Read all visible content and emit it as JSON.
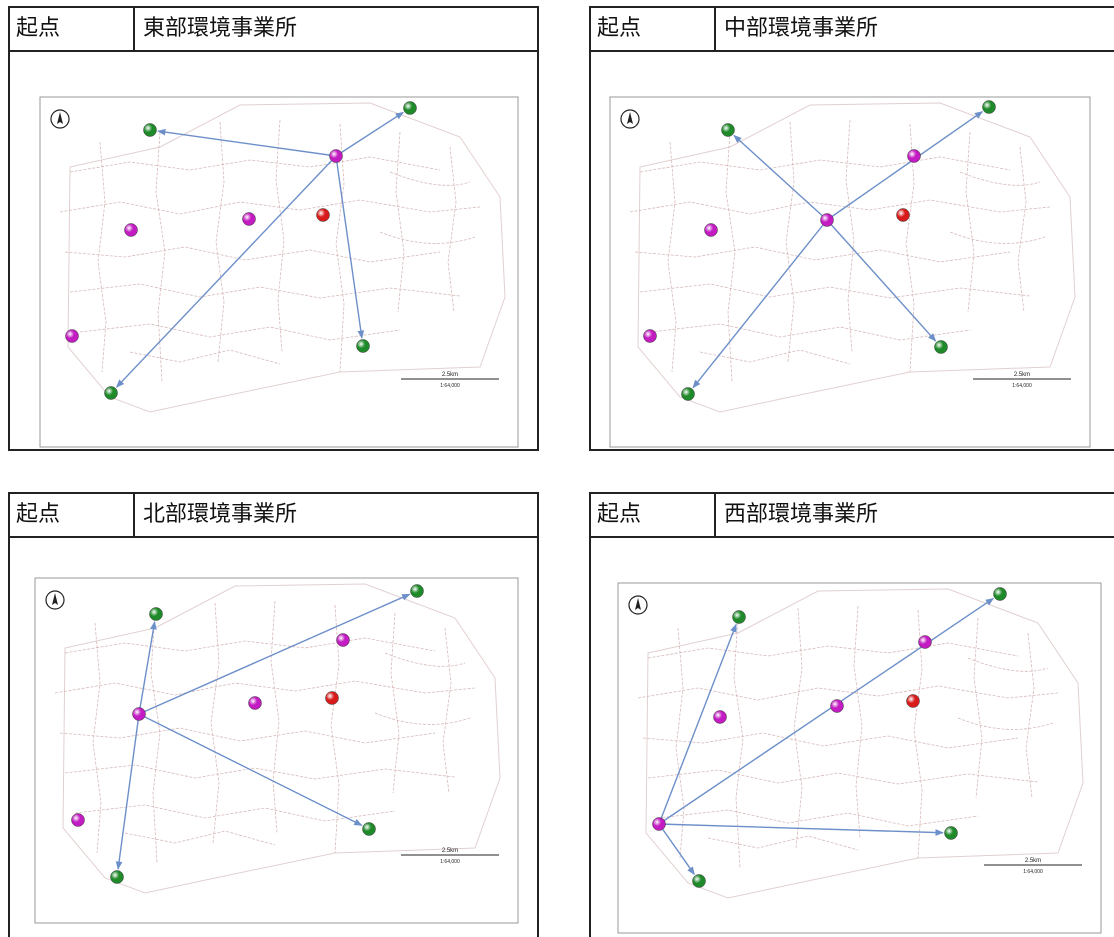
{
  "panels": [
    {
      "label": "起点",
      "title": "東部環境事業所",
      "scale_text": "2.5km",
      "scale_sub": "1:64,000",
      "points": [
        {
          "id": "o",
          "kind": "magenta"
        },
        {
          "id": "g1",
          "kind": "green"
        },
        {
          "id": "g2",
          "kind": "green"
        },
        {
          "id": "g3",
          "kind": "green"
        },
        {
          "id": "g4",
          "kind": "green"
        },
        {
          "id": "m1",
          "kind": "magenta"
        },
        {
          "id": "m2",
          "kind": "magenta"
        },
        {
          "id": "m3",
          "kind": "magenta"
        },
        {
          "id": "r",
          "kind": "red"
        }
      ],
      "routes": [
        [
          "o",
          "g1"
        ],
        [
          "o",
          "g2"
        ],
        [
          "o",
          "g3"
        ],
        [
          "o",
          "g4"
        ]
      ]
    },
    {
      "label": "起点",
      "title": "中部環境事業所",
      "scale_text": "2.5km",
      "scale_sub": "1:64,000",
      "points": [
        {
          "id": "o",
          "kind": "magenta"
        },
        {
          "id": "g1",
          "kind": "green"
        },
        {
          "id": "g2",
          "kind": "green"
        },
        {
          "id": "g3",
          "kind": "green"
        },
        {
          "id": "g4",
          "kind": "green"
        },
        {
          "id": "m1",
          "kind": "magenta"
        },
        {
          "id": "m2",
          "kind": "magenta"
        },
        {
          "id": "m3",
          "kind": "magenta"
        },
        {
          "id": "r",
          "kind": "red"
        }
      ],
      "routes": [
        [
          "o",
          "g1"
        ],
        [
          "o",
          "g2"
        ],
        [
          "o",
          "g3"
        ],
        [
          "o",
          "g4"
        ]
      ]
    },
    {
      "label": "起点",
      "title": "北部環境事業所",
      "scale_text": "2.5km",
      "scale_sub": "1:64,000",
      "points": [
        {
          "id": "o",
          "kind": "magenta"
        },
        {
          "id": "g1",
          "kind": "green"
        },
        {
          "id": "g2",
          "kind": "green"
        },
        {
          "id": "g3",
          "kind": "green"
        },
        {
          "id": "g4",
          "kind": "green"
        },
        {
          "id": "m1",
          "kind": "magenta"
        },
        {
          "id": "m2",
          "kind": "magenta"
        },
        {
          "id": "m3",
          "kind": "magenta"
        },
        {
          "id": "r",
          "kind": "red"
        }
      ],
      "routes": [
        [
          "o",
          "g1"
        ],
        [
          "o",
          "g2"
        ],
        [
          "o",
          "g3"
        ],
        [
          "o",
          "g4"
        ]
      ]
    },
    {
      "label": "起点",
      "title": "西部環境事業所",
      "scale_text": "2.5km",
      "scale_sub": "1:64,000",
      "points": [
        {
          "id": "o",
          "kind": "magenta"
        },
        {
          "id": "g1",
          "kind": "green"
        },
        {
          "id": "g2",
          "kind": "green"
        },
        {
          "id": "g3",
          "kind": "green"
        },
        {
          "id": "g4",
          "kind": "green"
        },
        {
          "id": "m1",
          "kind": "magenta"
        },
        {
          "id": "m2",
          "kind": "magenta"
        },
        {
          "id": "m3",
          "kind": "magenta"
        },
        {
          "id": "r",
          "kind": "red"
        }
      ],
      "routes": [
        [
          "o",
          "g1"
        ],
        [
          "o",
          "g2"
        ],
        [
          "o",
          "g3"
        ],
        [
          "o",
          "g4"
        ]
      ]
    }
  ],
  "colors": {
    "route": "#6d8fc9",
    "road": "#d7b9b9",
    "green": "#1f8a2a",
    "magenta": "#c21cc2",
    "red": "#d81b1b"
  }
}
